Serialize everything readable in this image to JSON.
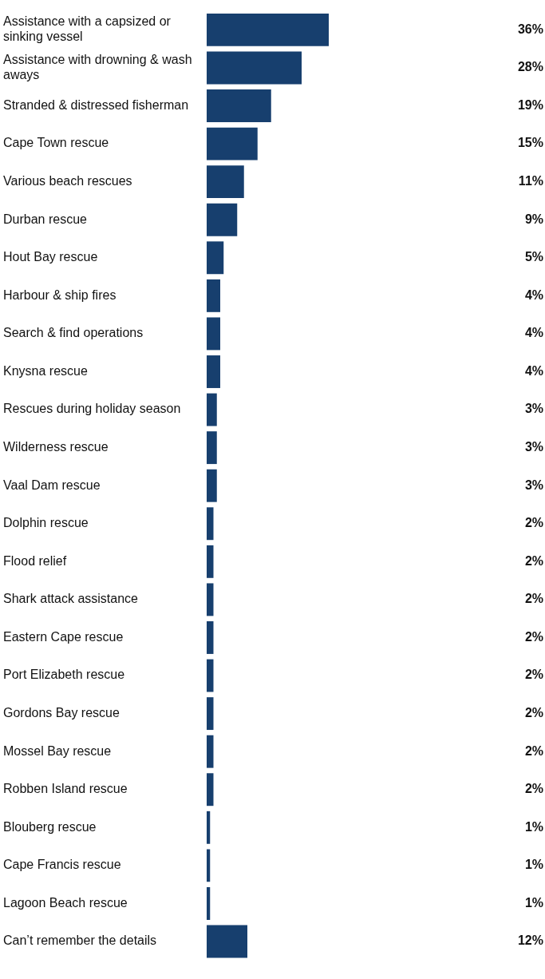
{
  "chart_data": {
    "type": "bar",
    "orientation": "horizontal",
    "categories": [
      "Assistance with a capsized or sinking vessel",
      "Assistance with drowning & wash aways",
      "Stranded & distressed fisherman",
      "Cape Town rescue",
      "Various beach rescues",
      "Durban rescue",
      "Hout Bay rescue",
      "Harbour & ship fires",
      "Search & find operations",
      "Knysna rescue",
      "Rescues during holiday season",
      "Wilderness rescue",
      "Vaal Dam rescue",
      "Dolphin rescue",
      "Flood relief",
      "Shark attack assistance",
      "Eastern Cape rescue",
      "Port Elizabeth rescue",
      "Gordons Bay rescue",
      "Mossel Bay rescue",
      "Robben Island rescue",
      "Blouberg rescue",
      "Cape Francis rescue",
      "Lagoon Beach rescue",
      "Can’t remember the details"
    ],
    "values": [
      36,
      28,
      19,
      15,
      11,
      9,
      5,
      4,
      4,
      4,
      3,
      3,
      3,
      2,
      2,
      2,
      2,
      2,
      2,
      2,
      2,
      1,
      1,
      1,
      12
    ],
    "value_labels": [
      "36%",
      "28%",
      "19%",
      "15%",
      "11%",
      "9%",
      "5%",
      "4%",
      "4%",
      "4%",
      "3%",
      "3%",
      "3%",
      "2%",
      "2%",
      "2%",
      "2%",
      "2%",
      "2%",
      "2%",
      "2%",
      "1%",
      "1%",
      "1%",
      "12%"
    ],
    "color": "#173f6e",
    "tick_labels": "y",
    "legend": false
  }
}
